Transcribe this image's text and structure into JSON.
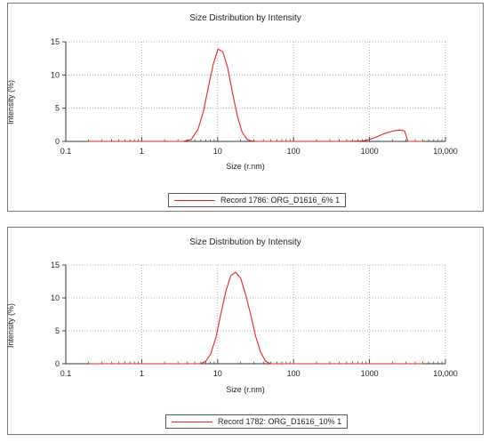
{
  "chart_data": [
    {
      "type": "line",
      "title": "Size Distribution by Intensity",
      "xlabel": "Size (r.nm)",
      "ylabel": "Intensity (%)",
      "x_scale": "log",
      "xlim": [
        0.1,
        10000
      ],
      "ylim": [
        0,
        15
      ],
      "xticks": [
        "0.1",
        "1",
        "10",
        "100",
        "1000",
        "10,000"
      ],
      "yticks": [
        "0",
        "5",
        "10",
        "15"
      ],
      "grid": "dotted",
      "legend_position": "bottom-center",
      "color": "#e0281e",
      "series": [
        {
          "name": "Record 1786: ORG_D1616_6% 1",
          "x": [
            0.2,
            3.5,
            4.5,
            5.5,
            6.5,
            7.5,
            8.7,
            10.1,
            11.7,
            13.5,
            15.7,
            18.2,
            21.0,
            24.4,
            28.2,
            33.0,
            40.0,
            100,
            500,
            800,
            1000,
            1200,
            1500,
            1800,
            2100,
            2500,
            2900,
            3200,
            5000
          ],
          "y": [
            0,
            0,
            0.3,
            1.8,
            4.5,
            8.0,
            11.5,
            13.9,
            13.5,
            11.2,
            7.3,
            3.8,
            1.4,
            0.3,
            0.05,
            0,
            0,
            0,
            0,
            0.05,
            0.3,
            0.6,
            1.1,
            1.4,
            1.6,
            1.7,
            1.6,
            0,
            0
          ]
        }
      ]
    },
    {
      "type": "line",
      "title": "Size Distribution by Intensity",
      "xlabel": "Size (r.nm)",
      "ylabel": "Intensity (%)",
      "x_scale": "log",
      "xlim": [
        0.1,
        10000
      ],
      "ylim": [
        0,
        15
      ],
      "xticks": [
        "0.1",
        "1",
        "10",
        "100",
        "1000",
        "10,000"
      ],
      "yticks": [
        "0",
        "5",
        "10",
        "15"
      ],
      "grid": "dotted",
      "legend_position": "bottom-center",
      "color": "#e0281e",
      "series": [
        {
          "name": "Record 1782: ORG_D1616_10% 1",
          "x": [
            0.2,
            6.0,
            7.0,
            8.1,
            9.5,
            11.0,
            12.8,
            14.9,
            17.3,
            20.1,
            23.4,
            27.2,
            31.6,
            36.7,
            42.7,
            49.6,
            60,
            5000
          ],
          "y": [
            0,
            0,
            0.4,
            1.5,
            4.0,
            7.5,
            11.0,
            13.4,
            13.9,
            13.0,
            10.5,
            7.5,
            4.2,
            1.8,
            0.4,
            0,
            0,
            0
          ]
        }
      ]
    }
  ]
}
